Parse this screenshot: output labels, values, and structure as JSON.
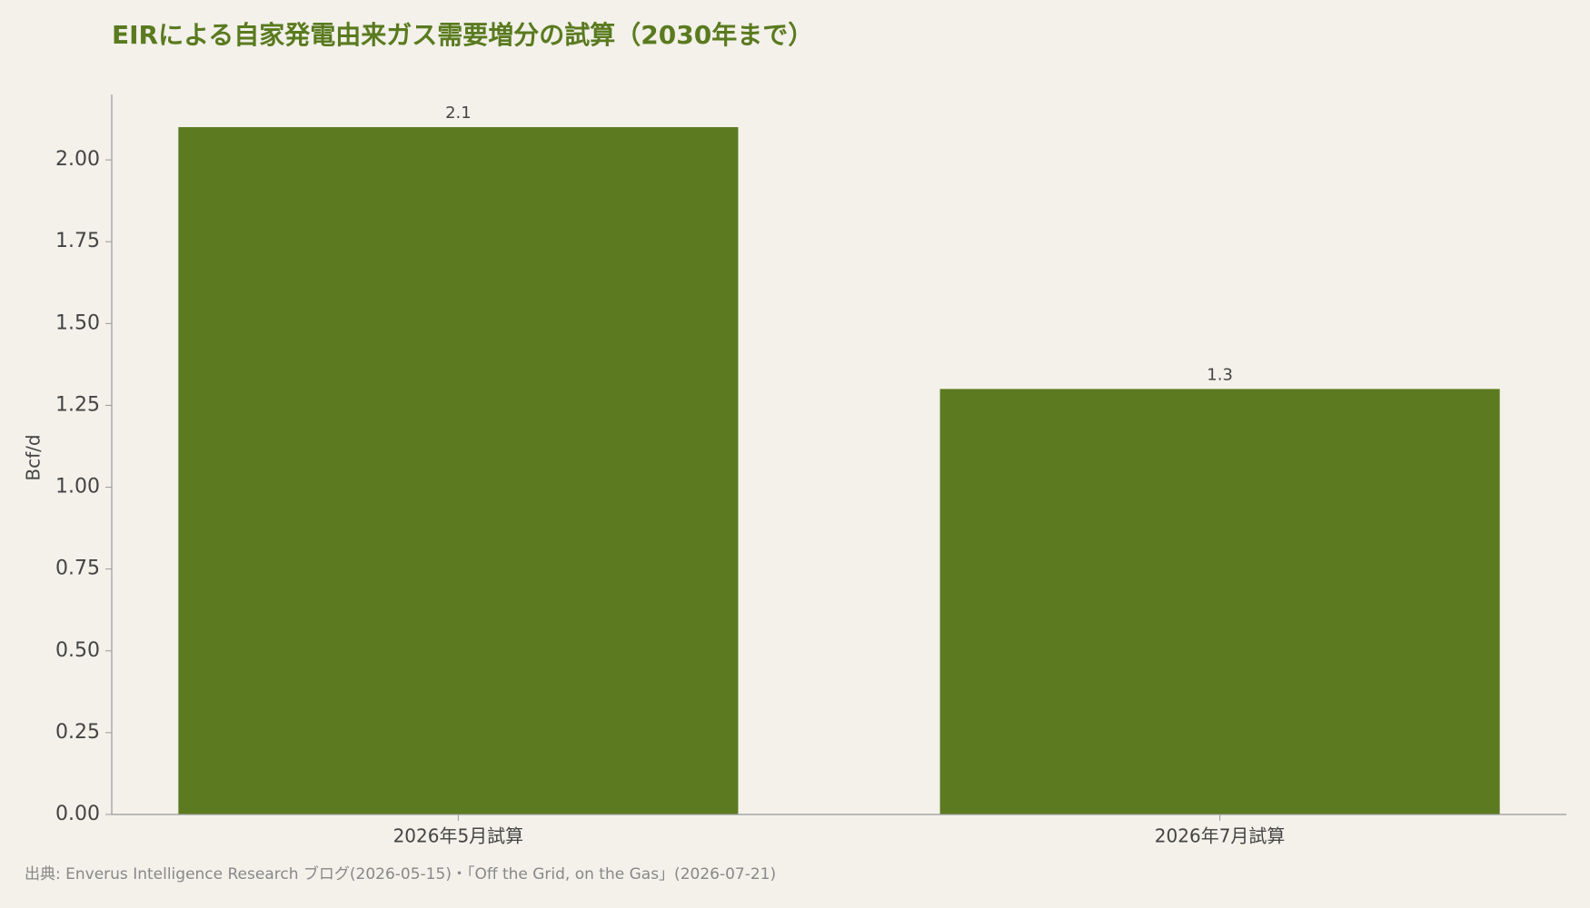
{
  "chart_data": {
    "type": "bar",
    "title": "EIRによる自家発電由来ガス需要増分の試算（2030年まで）",
    "y_label": "Bcf/d",
    "source": "出典: Enverus Intelligence Research ブログ(2026-05-15)・「Off the Grid, on the Gas」(2026-07-21)",
    "categories": [
      "2026年5月試算",
      "2026年7月試算"
    ],
    "values": [
      2.1,
      1.3
    ],
    "color": "#5c7a1f",
    "ylim": [
      0,
      2.2
    ],
    "yticks": [
      {
        "value": 0,
        "label": "0.00"
      },
      {
        "value": 0.25,
        "label": "0.25"
      },
      {
        "value": 0.5,
        "label": "0.50"
      },
      {
        "value": 0.75,
        "label": "0.75"
      },
      {
        "value": 1,
        "label": "1.00"
      },
      {
        "value": 1.25,
        "label": "1.25"
      },
      {
        "value": 1.5,
        "label": "1.50"
      },
      {
        "value": 1.75,
        "label": "1.75"
      },
      {
        "value": 2,
        "label": "2.00"
      }
    ],
    "grid": false
  }
}
